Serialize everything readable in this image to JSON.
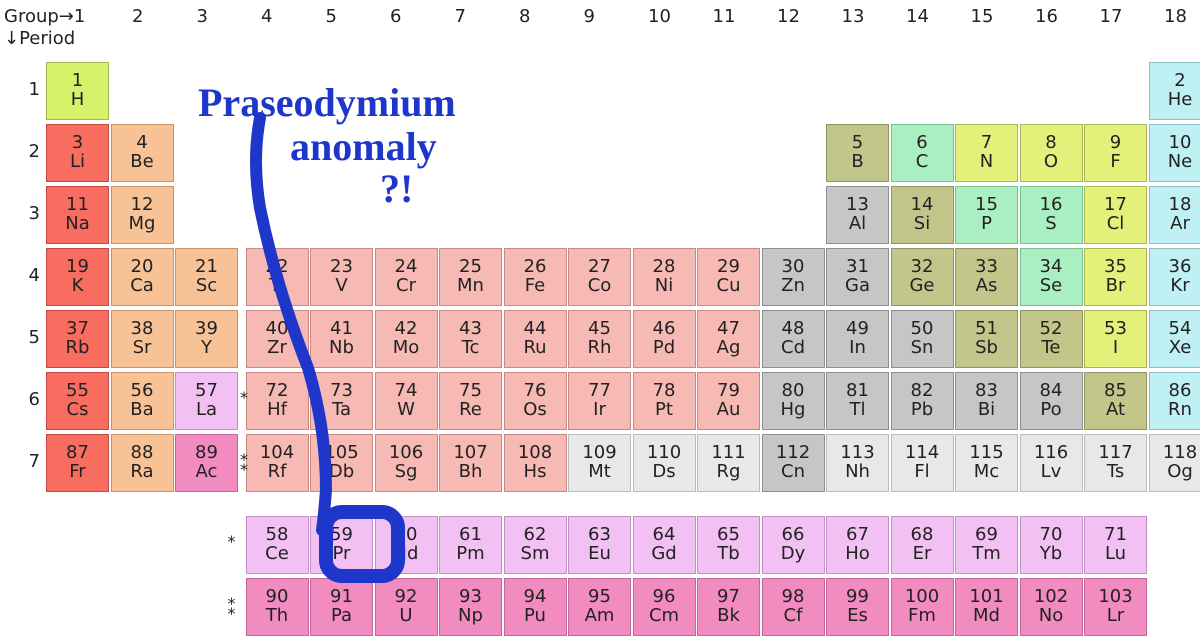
{
  "headers": {
    "group": "Group→1",
    "period": "↓Period"
  },
  "annotation": {
    "line1": "Praseodymium",
    "line2": "anomaly",
    "line3": "?!"
  },
  "layout": {
    "gridLeft": 46,
    "gridTop": 62,
    "cellW": 63,
    "cellH": 58,
    "rowGap": 4,
    "colGap": 1.5,
    "periodLabels": [
      1,
      2,
      3,
      4,
      5,
      6,
      7
    ],
    "groupLabels": [
      1,
      2,
      3,
      4,
      5,
      6,
      7,
      8,
      9,
      10,
      11,
      12,
      13,
      14,
      15,
      16,
      17,
      18
    ],
    "fRowTop": 516,
    "fRowLeft": 268,
    "ast1Col": 3,
    "ast1Period": 6,
    "ast2Period": 7
  },
  "colors": {
    "alkali": {
      "bg": "#f86d60",
      "bd": "#c84a3f"
    },
    "alkaline": {
      "bg": "#f7c396",
      "bd": "#c8936a"
    },
    "lanth": {
      "bg": "#f2c0f2",
      "bd": "#c48fc4"
    },
    "act": {
      "bg": "#f28cc0",
      "bd": "#c26799"
    },
    "trans": {
      "bg": "#f6b9b3",
      "bd": "#c88984"
    },
    "post": {
      "bg": "#c6c6c6",
      "bd": "#8f8f8f"
    },
    "metalloid": {
      "bg": "#c3c68a",
      "bd": "#909463"
    },
    "reactive": {
      "bg": "#e3f07a",
      "bd": "#a9b556"
    },
    "halogencell": {
      "bg": "#a9efc1",
      "bd": "#7abf91"
    },
    "noble": {
      "bg": "#bff0f4",
      "bd": "#8cc0c4"
    },
    "hydrogen": {
      "bg": "#d6f26a",
      "bd": "#a1b84d"
    },
    "unknown": {
      "bg": "#e8e8e8",
      "bd": "#bcbcbc"
    }
  },
  "elements": [
    {
      "n": 1,
      "s": "H",
      "p": 1,
      "g": 1,
      "c": "hydrogen"
    },
    {
      "n": 2,
      "s": "He",
      "p": 1,
      "g": 18,
      "c": "noble"
    },
    {
      "n": 3,
      "s": "Li",
      "p": 2,
      "g": 1,
      "c": "alkali"
    },
    {
      "n": 4,
      "s": "Be",
      "p": 2,
      "g": 2,
      "c": "alkaline"
    },
    {
      "n": 5,
      "s": "B",
      "p": 2,
      "g": 13,
      "c": "metalloid"
    },
    {
      "n": 6,
      "s": "C",
      "p": 2,
      "g": 14,
      "c": "halogencell"
    },
    {
      "n": 7,
      "s": "N",
      "p": 2,
      "g": 15,
      "c": "reactive"
    },
    {
      "n": 8,
      "s": "O",
      "p": 2,
      "g": 16,
      "c": "reactive"
    },
    {
      "n": 9,
      "s": "F",
      "p": 2,
      "g": 17,
      "c": "reactive"
    },
    {
      "n": 10,
      "s": "Ne",
      "p": 2,
      "g": 18,
      "c": "noble"
    },
    {
      "n": 11,
      "s": "Na",
      "p": 3,
      "g": 1,
      "c": "alkali"
    },
    {
      "n": 12,
      "s": "Mg",
      "p": 3,
      "g": 2,
      "c": "alkaline"
    },
    {
      "n": 13,
      "s": "Al",
      "p": 3,
      "g": 13,
      "c": "post"
    },
    {
      "n": 14,
      "s": "Si",
      "p": 3,
      "g": 14,
      "c": "metalloid"
    },
    {
      "n": 15,
      "s": "P",
      "p": 3,
      "g": 15,
      "c": "halogencell"
    },
    {
      "n": 16,
      "s": "S",
      "p": 3,
      "g": 16,
      "c": "halogencell"
    },
    {
      "n": 17,
      "s": "Cl",
      "p": 3,
      "g": 17,
      "c": "reactive"
    },
    {
      "n": 18,
      "s": "Ar",
      "p": 3,
      "g": 18,
      "c": "noble"
    },
    {
      "n": 19,
      "s": "K",
      "p": 4,
      "g": 1,
      "c": "alkali"
    },
    {
      "n": 20,
      "s": "Ca",
      "p": 4,
      "g": 2,
      "c": "alkaline"
    },
    {
      "n": 21,
      "s": "Sc",
      "p": 4,
      "g": 3,
      "c": "alkaline"
    },
    {
      "n": 22,
      "s": "Ti",
      "p": 4,
      "g": 4,
      "c": "trans"
    },
    {
      "n": 23,
      "s": "V",
      "p": 4,
      "g": 5,
      "c": "trans"
    },
    {
      "n": 24,
      "s": "Cr",
      "p": 4,
      "g": 6,
      "c": "trans"
    },
    {
      "n": 25,
      "s": "Mn",
      "p": 4,
      "g": 7,
      "c": "trans"
    },
    {
      "n": 26,
      "s": "Fe",
      "p": 4,
      "g": 8,
      "c": "trans"
    },
    {
      "n": 27,
      "s": "Co",
      "p": 4,
      "g": 9,
      "c": "trans"
    },
    {
      "n": 28,
      "s": "Ni",
      "p": 4,
      "g": 10,
      "c": "trans"
    },
    {
      "n": 29,
      "s": "Cu",
      "p": 4,
      "g": 11,
      "c": "trans"
    },
    {
      "n": 30,
      "s": "Zn",
      "p": 4,
      "g": 12,
      "c": "post"
    },
    {
      "n": 31,
      "s": "Ga",
      "p": 4,
      "g": 13,
      "c": "post"
    },
    {
      "n": 32,
      "s": "Ge",
      "p": 4,
      "g": 14,
      "c": "metalloid"
    },
    {
      "n": 33,
      "s": "As",
      "p": 4,
      "g": 15,
      "c": "metalloid"
    },
    {
      "n": 34,
      "s": "Se",
      "p": 4,
      "g": 16,
      "c": "halogencell"
    },
    {
      "n": 35,
      "s": "Br",
      "p": 4,
      "g": 17,
      "c": "reactive"
    },
    {
      "n": 36,
      "s": "Kr",
      "p": 4,
      "g": 18,
      "c": "noble"
    },
    {
      "n": 37,
      "s": "Rb",
      "p": 5,
      "g": 1,
      "c": "alkali"
    },
    {
      "n": 38,
      "s": "Sr",
      "p": 5,
      "g": 2,
      "c": "alkaline"
    },
    {
      "n": 39,
      "s": "Y",
      "p": 5,
      "g": 3,
      "c": "alkaline"
    },
    {
      "n": 40,
      "s": "Zr",
      "p": 5,
      "g": 4,
      "c": "trans"
    },
    {
      "n": 41,
      "s": "Nb",
      "p": 5,
      "g": 5,
      "c": "trans"
    },
    {
      "n": 42,
      "s": "Mo",
      "p": 5,
      "g": 6,
      "c": "trans"
    },
    {
      "n": 43,
      "s": "Tc",
      "p": 5,
      "g": 7,
      "c": "trans"
    },
    {
      "n": 44,
      "s": "Ru",
      "p": 5,
      "g": 8,
      "c": "trans"
    },
    {
      "n": 45,
      "s": "Rh",
      "p": 5,
      "g": 9,
      "c": "trans"
    },
    {
      "n": 46,
      "s": "Pd",
      "p": 5,
      "g": 10,
      "c": "trans"
    },
    {
      "n": 47,
      "s": "Ag",
      "p": 5,
      "g": 11,
      "c": "trans"
    },
    {
      "n": 48,
      "s": "Cd",
      "p": 5,
      "g": 12,
      "c": "post"
    },
    {
      "n": 49,
      "s": "In",
      "p": 5,
      "g": 13,
      "c": "post"
    },
    {
      "n": 50,
      "s": "Sn",
      "p": 5,
      "g": 14,
      "c": "post"
    },
    {
      "n": 51,
      "s": "Sb",
      "p": 5,
      "g": 15,
      "c": "metalloid"
    },
    {
      "n": 52,
      "s": "Te",
      "p": 5,
      "g": 16,
      "c": "metalloid"
    },
    {
      "n": 53,
      "s": "I",
      "p": 5,
      "g": 17,
      "c": "reactive"
    },
    {
      "n": 54,
      "s": "Xe",
      "p": 5,
      "g": 18,
      "c": "noble"
    },
    {
      "n": 55,
      "s": "Cs",
      "p": 6,
      "g": 1,
      "c": "alkali"
    },
    {
      "n": 56,
      "s": "Ba",
      "p": 6,
      "g": 2,
      "c": "alkaline"
    },
    {
      "n": 57,
      "s": "La",
      "p": 6,
      "g": 3,
      "c": "lanth"
    },
    {
      "n": 72,
      "s": "Hf",
      "p": 6,
      "g": 4,
      "c": "trans"
    },
    {
      "n": 73,
      "s": "Ta",
      "p": 6,
      "g": 5,
      "c": "trans"
    },
    {
      "n": 74,
      "s": "W",
      "p": 6,
      "g": 6,
      "c": "trans"
    },
    {
      "n": 75,
      "s": "Re",
      "p": 6,
      "g": 7,
      "c": "trans"
    },
    {
      "n": 76,
      "s": "Os",
      "p": 6,
      "g": 8,
      "c": "trans"
    },
    {
      "n": 77,
      "s": "Ir",
      "p": 6,
      "g": 9,
      "c": "trans"
    },
    {
      "n": 78,
      "s": "Pt",
      "p": 6,
      "g": 10,
      "c": "trans"
    },
    {
      "n": 79,
      "s": "Au",
      "p": 6,
      "g": 11,
      "c": "trans"
    },
    {
      "n": 80,
      "s": "Hg",
      "p": 6,
      "g": 12,
      "c": "post"
    },
    {
      "n": 81,
      "s": "Tl",
      "p": 6,
      "g": 13,
      "c": "post"
    },
    {
      "n": 82,
      "s": "Pb",
      "p": 6,
      "g": 14,
      "c": "post"
    },
    {
      "n": 83,
      "s": "Bi",
      "p": 6,
      "g": 15,
      "c": "post"
    },
    {
      "n": 84,
      "s": "Po",
      "p": 6,
      "g": 16,
      "c": "post"
    },
    {
      "n": 85,
      "s": "At",
      "p": 6,
      "g": 17,
      "c": "metalloid"
    },
    {
      "n": 86,
      "s": "Rn",
      "p": 6,
      "g": 18,
      "c": "noble"
    },
    {
      "n": 87,
      "s": "Fr",
      "p": 7,
      "g": 1,
      "c": "alkali"
    },
    {
      "n": 88,
      "s": "Ra",
      "p": 7,
      "g": 2,
      "c": "alkaline"
    },
    {
      "n": 89,
      "s": "Ac",
      "p": 7,
      "g": 3,
      "c": "act"
    },
    {
      "n": 104,
      "s": "Rf",
      "p": 7,
      "g": 4,
      "c": "trans"
    },
    {
      "n": 105,
      "s": "Db",
      "p": 7,
      "g": 5,
      "c": "trans"
    },
    {
      "n": 106,
      "s": "Sg",
      "p": 7,
      "g": 6,
      "c": "trans"
    },
    {
      "n": 107,
      "s": "Bh",
      "p": 7,
      "g": 7,
      "c": "trans"
    },
    {
      "n": 108,
      "s": "Hs",
      "p": 7,
      "g": 8,
      "c": "trans"
    },
    {
      "n": 109,
      "s": "Mt",
      "p": 7,
      "g": 9,
      "c": "unknown"
    },
    {
      "n": 110,
      "s": "Ds",
      "p": 7,
      "g": 10,
      "c": "unknown"
    },
    {
      "n": 111,
      "s": "Rg",
      "p": 7,
      "g": 11,
      "c": "unknown"
    },
    {
      "n": 112,
      "s": "Cn",
      "p": 7,
      "g": 12,
      "c": "post"
    },
    {
      "n": 113,
      "s": "Nh",
      "p": 7,
      "g": 13,
      "c": "unknown"
    },
    {
      "n": 114,
      "s": "Fl",
      "p": 7,
      "g": 14,
      "c": "unknown"
    },
    {
      "n": 115,
      "s": "Mc",
      "p": 7,
      "g": 15,
      "c": "unknown"
    },
    {
      "n": 116,
      "s": "Lv",
      "p": 7,
      "g": 16,
      "c": "unknown"
    },
    {
      "n": 117,
      "s": "Ts",
      "p": 7,
      "g": 17,
      "c": "unknown"
    },
    {
      "n": 118,
      "s": "Og",
      "p": 7,
      "g": 18,
      "c": "unknown"
    }
  ],
  "lanthanides": [
    {
      "n": 58,
      "s": "Ce",
      "c": "lanth"
    },
    {
      "n": 59,
      "s": "Pr",
      "c": "lanth"
    },
    {
      "n": 60,
      "s": "Nd",
      "c": "lanth"
    },
    {
      "n": 61,
      "s": "Pm",
      "c": "lanth"
    },
    {
      "n": 62,
      "s": "Sm",
      "c": "lanth"
    },
    {
      "n": 63,
      "s": "Eu",
      "c": "lanth"
    },
    {
      "n": 64,
      "s": "Gd",
      "c": "lanth"
    },
    {
      "n": 65,
      "s": "Tb",
      "c": "lanth"
    },
    {
      "n": 66,
      "s": "Dy",
      "c": "lanth"
    },
    {
      "n": 67,
      "s": "Ho",
      "c": "lanth"
    },
    {
      "n": 68,
      "s": "Er",
      "c": "lanth"
    },
    {
      "n": 69,
      "s": "Tm",
      "c": "lanth"
    },
    {
      "n": 70,
      "s": "Yb",
      "c": "lanth"
    },
    {
      "n": 71,
      "s": "Lu",
      "c": "lanth"
    }
  ],
  "actinides": [
    {
      "n": 90,
      "s": "Th",
      "c": "act"
    },
    {
      "n": 91,
      "s": "Pa",
      "c": "act"
    },
    {
      "n": 92,
      "s": "U",
      "c": "act"
    },
    {
      "n": 93,
      "s": "Np",
      "c": "act"
    },
    {
      "n": 94,
      "s": "Pu",
      "c": "act"
    },
    {
      "n": 95,
      "s": "Am",
      "c": "act"
    },
    {
      "n": 96,
      "s": "Cm",
      "c": "act"
    },
    {
      "n": 97,
      "s": "Bk",
      "c": "act"
    },
    {
      "n": 98,
      "s": "Cf",
      "c": "act"
    },
    {
      "n": 99,
      "s": "Es",
      "c": "act"
    },
    {
      "n": 100,
      "s": "Fm",
      "c": "act"
    },
    {
      "n": 101,
      "s": "Md",
      "c": "act"
    },
    {
      "n": 102,
      "s": "No",
      "c": "act"
    },
    {
      "n": 103,
      "s": "Lr",
      "c": "act"
    }
  ]
}
